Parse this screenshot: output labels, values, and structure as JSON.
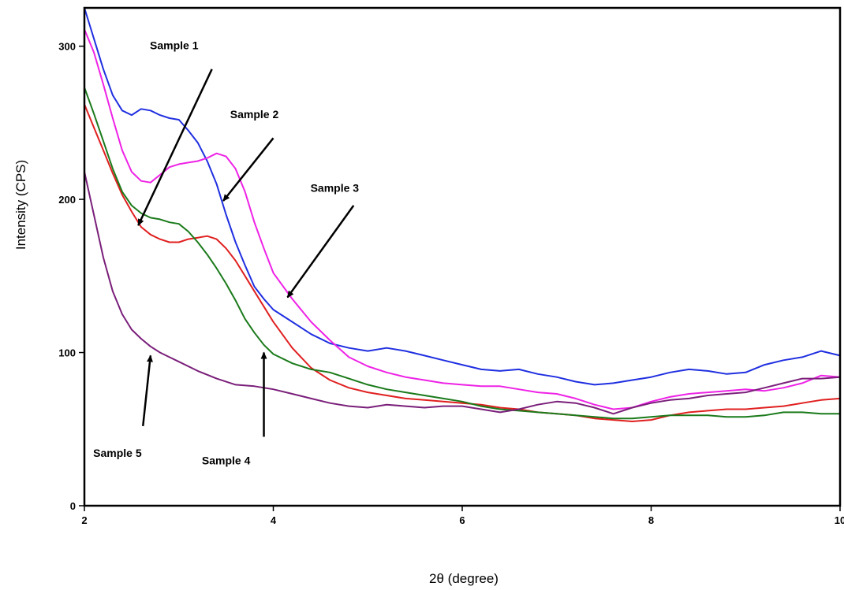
{
  "chart_data": {
    "type": "line",
    "title": "",
    "xlabel": "2θ (degree)",
    "ylabel": "Intensity (CPS)",
    "xlim": [
      2,
      10
    ],
    "ylim": [
      0,
      325
    ],
    "x_ticks": [
      "2",
      "4",
      "6",
      "8",
      "10"
    ],
    "y_ticks": [
      "0",
      "100",
      "200",
      "300"
    ],
    "grid": false,
    "legend": "none",
    "series": [
      {
        "color": "#1f2fe0",
        "points": [
          [
            2,
            325
          ],
          [
            2.1,
            305
          ],
          [
            2.2,
            285
          ],
          [
            2.3,
            268
          ],
          [
            2.4,
            258
          ],
          [
            2.5,
            255
          ],
          [
            2.6,
            259
          ],
          [
            2.7,
            258
          ],
          [
            2.8,
            255
          ],
          [
            2.9,
            253
          ],
          [
            3.0,
            252
          ],
          [
            3.1,
            245
          ],
          [
            3.2,
            237
          ],
          [
            3.3,
            225
          ],
          [
            3.4,
            210
          ],
          [
            3.5,
            190
          ],
          [
            3.6,
            172
          ],
          [
            3.7,
            157
          ],
          [
            3.8,
            143
          ],
          [
            3.9,
            135
          ],
          [
            4.0,
            128
          ],
          [
            4.2,
            120
          ],
          [
            4.4,
            112
          ],
          [
            4.6,
            106
          ],
          [
            4.8,
            103
          ],
          [
            5.0,
            101
          ],
          [
            5.2,
            103
          ],
          [
            5.4,
            101
          ],
          [
            5.6,
            98
          ],
          [
            5.8,
            95
          ],
          [
            6.0,
            92
          ],
          [
            6.2,
            89
          ],
          [
            6.4,
            88
          ],
          [
            6.6,
            89
          ],
          [
            6.8,
            86
          ],
          [
            7.0,
            84
          ],
          [
            7.2,
            81
          ],
          [
            7.4,
            79
          ],
          [
            7.6,
            80
          ],
          [
            7.8,
            82
          ],
          [
            8.0,
            84
          ],
          [
            8.2,
            87
          ],
          [
            8.4,
            89
          ],
          [
            8.6,
            88
          ],
          [
            8.8,
            86
          ],
          [
            9.0,
            87
          ],
          [
            9.2,
            92
          ],
          [
            9.4,
            95
          ],
          [
            9.6,
            97
          ],
          [
            9.8,
            101
          ],
          [
            10,
            98
          ]
        ]
      },
      {
        "color": "#ee22e6",
        "points": [
          [
            2,
            311
          ],
          [
            2.1,
            296
          ],
          [
            2.2,
            275
          ],
          [
            2.3,
            253
          ],
          [
            2.4,
            232
          ],
          [
            2.5,
            218
          ],
          [
            2.6,
            212
          ],
          [
            2.7,
            211
          ],
          [
            2.8,
            216
          ],
          [
            2.9,
            221
          ],
          [
            3.0,
            223
          ],
          [
            3.1,
            224
          ],
          [
            3.2,
            225
          ],
          [
            3.3,
            227
          ],
          [
            3.4,
            230
          ],
          [
            3.5,
            228
          ],
          [
            3.6,
            220
          ],
          [
            3.7,
            205
          ],
          [
            3.8,
            185
          ],
          [
            3.9,
            168
          ],
          [
            4.0,
            152
          ],
          [
            4.2,
            135
          ],
          [
            4.4,
            120
          ],
          [
            4.6,
            108
          ],
          [
            4.8,
            97
          ],
          [
            5.0,
            91
          ],
          [
            5.2,
            87
          ],
          [
            5.4,
            84
          ],
          [
            5.6,
            82
          ],
          [
            5.8,
            80
          ],
          [
            6.0,
            79
          ],
          [
            6.2,
            78
          ],
          [
            6.4,
            78
          ],
          [
            6.6,
            76
          ],
          [
            6.8,
            74
          ],
          [
            7.0,
            73
          ],
          [
            7.2,
            70
          ],
          [
            7.4,
            66
          ],
          [
            7.6,
            63
          ],
          [
            7.8,
            64
          ],
          [
            8.0,
            68
          ],
          [
            8.2,
            71
          ],
          [
            8.4,
            73
          ],
          [
            8.6,
            74
          ],
          [
            8.8,
            75
          ],
          [
            9.0,
            76
          ],
          [
            9.2,
            75
          ],
          [
            9.4,
            77
          ],
          [
            9.6,
            80
          ],
          [
            9.8,
            85
          ],
          [
            10,
            84
          ]
        ]
      },
      {
        "color": "#e01f1f",
        "points": [
          [
            2,
            262
          ],
          [
            2.1,
            247
          ],
          [
            2.2,
            232
          ],
          [
            2.3,
            217
          ],
          [
            2.4,
            203
          ],
          [
            2.5,
            192
          ],
          [
            2.6,
            182
          ],
          [
            2.7,
            177
          ],
          [
            2.8,
            174
          ],
          [
            2.9,
            172
          ],
          [
            3.0,
            172
          ],
          [
            3.1,
            174
          ],
          [
            3.2,
            175
          ],
          [
            3.3,
            176
          ],
          [
            3.4,
            174
          ],
          [
            3.5,
            168
          ],
          [
            3.6,
            160
          ],
          [
            3.7,
            150
          ],
          [
            3.8,
            140
          ],
          [
            3.9,
            130
          ],
          [
            4.0,
            120
          ],
          [
            4.2,
            103
          ],
          [
            4.4,
            90
          ],
          [
            4.6,
            82
          ],
          [
            4.8,
            77
          ],
          [
            5.0,
            74
          ],
          [
            5.2,
            72
          ],
          [
            5.4,
            70
          ],
          [
            5.6,
            69
          ],
          [
            5.8,
            68
          ],
          [
            6.0,
            67
          ],
          [
            6.2,
            66
          ],
          [
            6.4,
            64
          ],
          [
            6.6,
            63
          ],
          [
            6.8,
            61
          ],
          [
            7.0,
            60
          ],
          [
            7.2,
            59
          ],
          [
            7.4,
            57
          ],
          [
            7.6,
            56
          ],
          [
            7.8,
            55
          ],
          [
            8.0,
            56
          ],
          [
            8.2,
            59
          ],
          [
            8.4,
            61
          ],
          [
            8.6,
            62
          ],
          [
            8.8,
            63
          ],
          [
            9.0,
            63
          ],
          [
            9.2,
            64
          ],
          [
            9.4,
            65
          ],
          [
            9.6,
            67
          ],
          [
            9.8,
            69
          ],
          [
            10,
            70
          ]
        ]
      },
      {
        "color": "#1a7a1a",
        "points": [
          [
            2,
            273
          ],
          [
            2.1,
            256
          ],
          [
            2.2,
            238
          ],
          [
            2.3,
            220
          ],
          [
            2.4,
            205
          ],
          [
            2.5,
            196
          ],
          [
            2.6,
            191
          ],
          [
            2.7,
            188
          ],
          [
            2.8,
            187
          ],
          [
            2.9,
            185
          ],
          [
            3.0,
            184
          ],
          [
            3.1,
            179
          ],
          [
            3.2,
            172
          ],
          [
            3.3,
            164
          ],
          [
            3.4,
            155
          ],
          [
            3.5,
            145
          ],
          [
            3.6,
            134
          ],
          [
            3.7,
            122
          ],
          [
            3.8,
            113
          ],
          [
            3.9,
            105
          ],
          [
            4.0,
            99
          ],
          [
            4.2,
            93
          ],
          [
            4.4,
            89
          ],
          [
            4.6,
            87
          ],
          [
            4.8,
            83
          ],
          [
            5.0,
            79
          ],
          [
            5.2,
            76
          ],
          [
            5.4,
            74
          ],
          [
            5.6,
            72
          ],
          [
            5.8,
            70
          ],
          [
            6.0,
            68
          ],
          [
            6.2,
            65
          ],
          [
            6.4,
            63
          ],
          [
            6.6,
            62
          ],
          [
            6.8,
            61
          ],
          [
            7.0,
            60
          ],
          [
            7.2,
            59
          ],
          [
            7.4,
            58
          ],
          [
            7.6,
            57
          ],
          [
            7.8,
            57
          ],
          [
            8.0,
            58
          ],
          [
            8.2,
            59
          ],
          [
            8.4,
            59
          ],
          [
            8.6,
            59
          ],
          [
            8.8,
            58
          ],
          [
            9.0,
            58
          ],
          [
            9.2,
            59
          ],
          [
            9.4,
            61
          ],
          [
            9.6,
            61
          ],
          [
            9.8,
            60
          ],
          [
            10,
            60
          ]
        ]
      },
      {
        "color": "#7a1f7a",
        "points": [
          [
            2,
            218
          ],
          [
            2.1,
            190
          ],
          [
            2.2,
            162
          ],
          [
            2.3,
            140
          ],
          [
            2.4,
            125
          ],
          [
            2.5,
            115
          ],
          [
            2.6,
            109
          ],
          [
            2.7,
            104
          ],
          [
            2.8,
            100
          ],
          [
            2.9,
            97
          ],
          [
            3.0,
            94
          ],
          [
            3.2,
            88
          ],
          [
            3.4,
            83
          ],
          [
            3.6,
            79
          ],
          [
            3.8,
            78
          ],
          [
            4.0,
            76
          ],
          [
            4.2,
            73
          ],
          [
            4.4,
            70
          ],
          [
            4.6,
            67
          ],
          [
            4.8,
            65
          ],
          [
            5.0,
            64
          ],
          [
            5.2,
            66
          ],
          [
            5.4,
            65
          ],
          [
            5.6,
            64
          ],
          [
            5.8,
            65
          ],
          [
            6.0,
            65
          ],
          [
            6.2,
            63
          ],
          [
            6.4,
            61
          ],
          [
            6.6,
            63
          ],
          [
            6.8,
            66
          ],
          [
            7.0,
            68
          ],
          [
            7.2,
            67
          ],
          [
            7.4,
            64
          ],
          [
            7.6,
            60
          ],
          [
            7.8,
            64
          ],
          [
            8.0,
            67
          ],
          [
            8.2,
            69
          ],
          [
            8.4,
            70
          ],
          [
            8.6,
            72
          ],
          [
            8.8,
            73
          ],
          [
            9.0,
            74
          ],
          [
            9.2,
            77
          ],
          [
            9.4,
            80
          ],
          [
            9.6,
            83
          ],
          [
            9.8,
            83
          ],
          [
            10,
            84
          ]
        ]
      }
    ],
    "annotations": [
      {
        "label": "Sample 1",
        "text_x": 2.95,
        "text_y": 298,
        "arrow_from": [
          3.35,
          285
        ],
        "arrow_to": [
          2.57,
          183
        ]
      },
      {
        "label": "Sample 2",
        "text_x": 3.8,
        "text_y": 253,
        "arrow_from": [
          4.0,
          240
        ],
        "arrow_to": [
          3.47,
          199
        ]
      },
      {
        "label": "Sample 3",
        "text_x": 4.65,
        "text_y": 205,
        "arrow_from": [
          4.85,
          196
        ],
        "arrow_to": [
          4.15,
          136
        ]
      },
      {
        "label": "Sample 4",
        "text_x": 3.5,
        "text_y": 27,
        "arrow_from": [
          3.9,
          45
        ],
        "arrow_to": [
          3.9,
          100
        ]
      },
      {
        "label": "Sample 5",
        "text_x": 2.35,
        "text_y": 32,
        "arrow_from": [
          2.62,
          52
        ],
        "arrow_to": [
          2.7,
          98
        ]
      }
    ]
  }
}
